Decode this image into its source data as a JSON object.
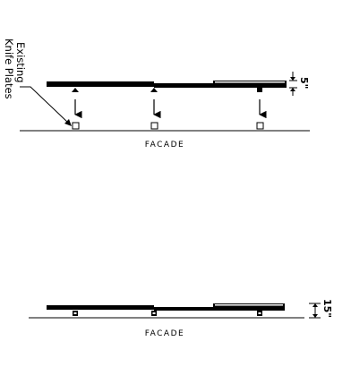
{
  "annotation": {
    "line1": "Existing",
    "line2": "Knife Plates"
  },
  "top_panel": {
    "label": "FACADE",
    "dimension": "5\""
  },
  "bottom_panel": {
    "label": "FACADE",
    "dimension": "15\""
  }
}
